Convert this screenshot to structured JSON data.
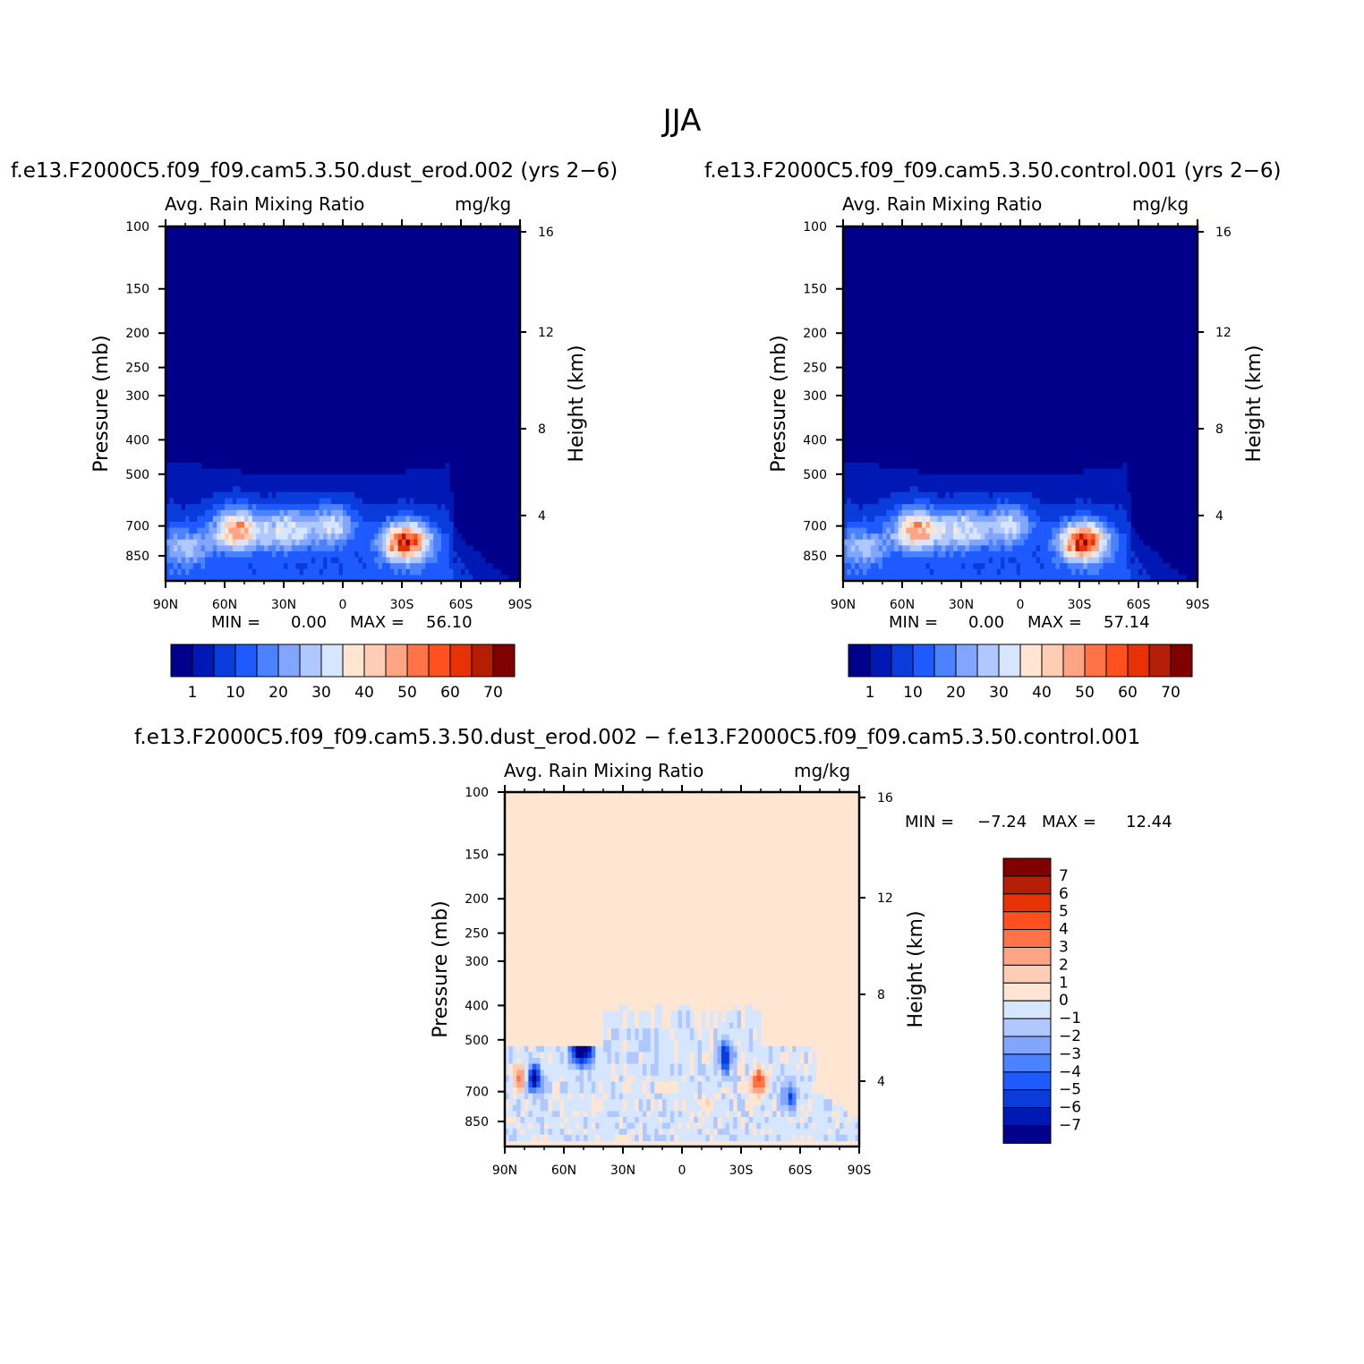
{
  "title": "JJA",
  "panels": {
    "p1": {
      "case": "f.e13.F2000C5.f09_f09.cam5.3.50.dust_erod.002 (yrs 2−6)",
      "var_label": "Avg. Rain Mixing Ratio",
      "units": "mg/kg",
      "min_label": "MIN =",
      "min_value": "0.00",
      "max_label": "MAX =",
      "max_value": "56.10"
    },
    "p2": {
      "case": "f.e13.F2000C5.f09_f09.cam5.3.50.control.001 (yrs 2−6)",
      "var_label": "Avg. Rain Mixing Ratio",
      "units": "mg/kg",
      "min_label": "MIN =",
      "min_value": "0.00",
      "max_label": "MAX =",
      "max_value": "57.14"
    },
    "diff": {
      "case": "f.e13.F2000C5.f09_f09.cam5.3.50.dust_erod.002 − f.e13.F2000C5.f09_f09.cam5.3.50.control.001",
      "var_label": "Avg. Rain Mixing Ratio",
      "units": "mg/kg",
      "min_label": "MIN =",
      "min_value": "−7.24",
      "max_label": "MAX =",
      "max_value": "12.44"
    }
  },
  "chart_data": [
    {
      "type": "heatmap",
      "panel": "p1",
      "title": "f.e13.F2000C5.f09_f09.cam5.3.50.dust_erod.002 (yrs 2−6)",
      "subtitle": "Avg. Rain Mixing Ratio",
      "units": "mg/kg",
      "xlabel": "",
      "ylabel": "Pressure (mb)",
      "y2label": "Height (km)",
      "xticks": [
        "90N",
        "60N",
        "30N",
        "0",
        "30S",
        "60S",
        "90S"
      ],
      "xlim": [
        90,
        -90
      ],
      "yticks": [
        100,
        150,
        200,
        250,
        300,
        400,
        500,
        700,
        850
      ],
      "ylim": [
        100,
        1000
      ],
      "yscale": "log",
      "y2ticks": [
        16,
        12,
        8,
        4
      ],
      "levels": [
        1,
        5,
        10,
        15,
        20,
        25,
        30,
        35,
        40,
        45,
        50,
        55,
        60,
        65,
        70
      ],
      "colorbar_labels": [
        "1",
        "10",
        "20",
        "30",
        "40",
        "50",
        "60",
        "70"
      ],
      "min": 0.0,
      "max": 56.1,
      "features": [
        {
          "lat": 53,
          "p": 720,
          "value": 42
        },
        {
          "lat": -32,
          "p": 780,
          "value": 56.1
        },
        {
          "lat": 5,
          "p": 700,
          "value": 25
        },
        {
          "lat": 28,
          "p": 720,
          "value": 28
        },
        {
          "lat": 80,
          "p": 800,
          "value": 18
        }
      ]
    },
    {
      "type": "heatmap",
      "panel": "p2",
      "title": "f.e13.F2000C5.f09_f09.cam5.3.50.control.001 (yrs 2−6)",
      "subtitle": "Avg. Rain Mixing Ratio",
      "units": "mg/kg",
      "xlabel": "",
      "ylabel": "Pressure (mb)",
      "y2label": "Height (km)",
      "xticks": [
        "90N",
        "60N",
        "30N",
        "0",
        "30S",
        "60S",
        "90S"
      ],
      "xlim": [
        90,
        -90
      ],
      "yticks": [
        100,
        150,
        200,
        250,
        300,
        400,
        500,
        700,
        850
      ],
      "ylim": [
        100,
        1000
      ],
      "yscale": "log",
      "y2ticks": [
        16,
        12,
        8,
        4
      ],
      "levels": [
        1,
        5,
        10,
        15,
        20,
        25,
        30,
        35,
        40,
        45,
        50,
        55,
        60,
        65,
        70
      ],
      "colorbar_labels": [
        "1",
        "10",
        "20",
        "30",
        "40",
        "50",
        "60",
        "70"
      ],
      "min": 0.0,
      "max": 57.14,
      "features": [
        {
          "lat": 52,
          "p": 720,
          "value": 43
        },
        {
          "lat": -32,
          "p": 780,
          "value": 57.14
        },
        {
          "lat": 5,
          "p": 700,
          "value": 24
        },
        {
          "lat": 28,
          "p": 720,
          "value": 27
        },
        {
          "lat": 80,
          "p": 800,
          "value": 18
        }
      ]
    },
    {
      "type": "heatmap",
      "panel": "diff",
      "title": "f.e13.F2000C5.f09_f09.cam5.3.50.dust_erod.002 − f.e13.F2000C5.f09_f09.cam5.3.50.control.001",
      "subtitle": "Avg. Rain Mixing Ratio",
      "units": "mg/kg",
      "xlabel": "",
      "ylabel": "Pressure (mb)",
      "y2label": "Height (km)",
      "xticks": [
        "90N",
        "60N",
        "30N",
        "0",
        "30S",
        "60S",
        "90S"
      ],
      "xlim": [
        90,
        -90
      ],
      "yticks": [
        100,
        150,
        200,
        250,
        300,
        400,
        500,
        700,
        850
      ],
      "ylim": [
        100,
        1000
      ],
      "yscale": "log",
      "y2ticks": [
        16,
        12,
        8,
        4
      ],
      "levels": [
        -7,
        -6,
        -5,
        -4,
        -3,
        -2,
        -1,
        0,
        1,
        2,
        3,
        4,
        5,
        6,
        7
      ],
      "colorbar_labels": [
        "7",
        "6",
        "5",
        "4",
        "3",
        "2",
        "1",
        "0",
        "−1",
        "−2",
        "−3",
        "−4",
        "−5",
        "−6",
        "−7"
      ],
      "min": -7.24,
      "max": 12.44,
      "features": [
        {
          "lat": 82,
          "p": 640,
          "value": 4
        },
        {
          "lat": 75,
          "p": 650,
          "value": -7
        },
        {
          "lat": 53,
          "p": 530,
          "value": -7
        },
        {
          "lat": 48,
          "p": 530,
          "value": -6
        },
        {
          "lat": -22,
          "p": 560,
          "value": -6
        },
        {
          "lat": -39,
          "p": 660,
          "value": 5
        },
        {
          "lat": -14,
          "p": 760,
          "value": 1
        },
        {
          "lat": -55,
          "p": 730,
          "value": -4
        }
      ]
    }
  ],
  "colors": {
    "seq": [
      "#00008b",
      "#0019b4",
      "#0a3cdc",
      "#1e5aff",
      "#4b82ff",
      "#82a5ff",
      "#afc8ff",
      "#d7e6ff",
      "#ffe6d2",
      "#ffcdb4",
      "#ffa586",
      "#ff7346",
      "#ff501e",
      "#e63205",
      "#b41e05",
      "#800000"
    ],
    "div": [
      "#00008b",
      "#0019b4",
      "#0a3cdc",
      "#1e5aff",
      "#4b82ff",
      "#82a5ff",
      "#afc8ff",
      "#d7e6ff",
      "#ffe6d2",
      "#ffcdb4",
      "#ffa586",
      "#ff7346",
      "#ff501e",
      "#e63205",
      "#b41e05",
      "#800000"
    ]
  }
}
